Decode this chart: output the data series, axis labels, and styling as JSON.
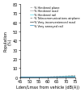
{
  "title_ylabel": "Population\n(%)",
  "xlabel": "Lden/Lmax from vehicle (dB(A))",
  "x_ticks": [
    45,
    50,
    55,
    60,
    65,
    70,
    75
  ],
  "y_ticks": [
    0,
    10,
    20,
    30,
    40,
    50,
    60,
    70,
    80
  ],
  "ylim": [
    0,
    80
  ],
  "xlim": [
    45,
    75
  ],
  "series": [
    {
      "label": "% Hindered plane",
      "color": "#aaaaaa",
      "linestyle": "--",
      "linewidth": 0.5
    },
    {
      "label": "% Hindered road",
      "color": "#aaaaaa",
      "linestyle": "-",
      "linewidth": 0.5
    },
    {
      "label": "% Hindered rail",
      "color": "#55ddee",
      "linestyle": "-",
      "linewidth": 0.5
    },
    {
      "label": "% Telecommunications airplane",
      "color": "#777777",
      "linestyle": "--",
      "linewidth": 0.5
    },
    {
      "label": "% Very-inconvenienced road",
      "color": "#444444",
      "linestyle": "-",
      "linewidth": 0.5
    },
    {
      "label": "% Very annoyed rail",
      "color": "#3399cc",
      "linestyle": "-",
      "linewidth": 0.5
    }
  ],
  "background_color": "#ffffff",
  "fontsize": 3.5,
  "legend_fontsize": 2.5
}
